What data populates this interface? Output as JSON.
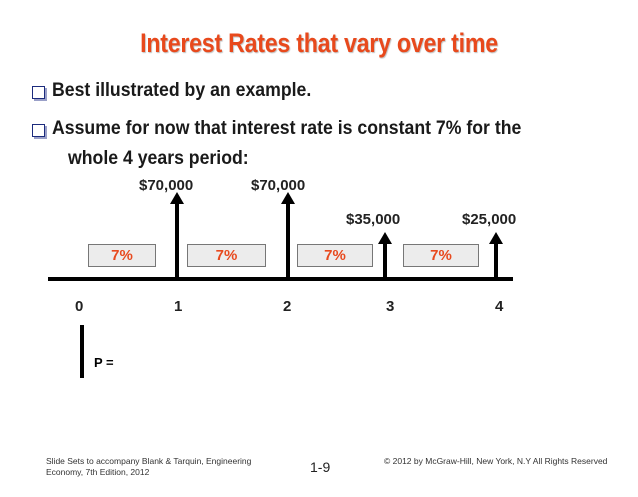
{
  "slide": {
    "title": "Interest Rates that vary over time",
    "bullets": [
      "Best illustrated by an example.",
      "Assume for now that interest rate is constant 7% for the"
    ],
    "bullet_continuation": "whole 4 years period:",
    "cash_flows": {
      "amounts": [
        "$70,000",
        "$70,000",
        "$35,000",
        "$25,000"
      ],
      "rates": [
        "7%",
        "7%",
        "7%",
        "7%"
      ],
      "periods": [
        "0",
        "1",
        "2",
        "3",
        "4"
      ],
      "present_value_label": "P ="
    },
    "footer": {
      "left_line1": "Slide Sets  to accompany Blank & Tarquin, Engineering",
      "left_line2": "Economy, 7th Edition, 2012",
      "page_number": "1-9",
      "copyright": "© 2012 by McGraw-Hill, New York, N.Y All Rights Reserved"
    },
    "colors": {
      "title": "#e8491c",
      "rate_text": "#e84a1f",
      "bullet_box": "#1c2b7d"
    }
  }
}
